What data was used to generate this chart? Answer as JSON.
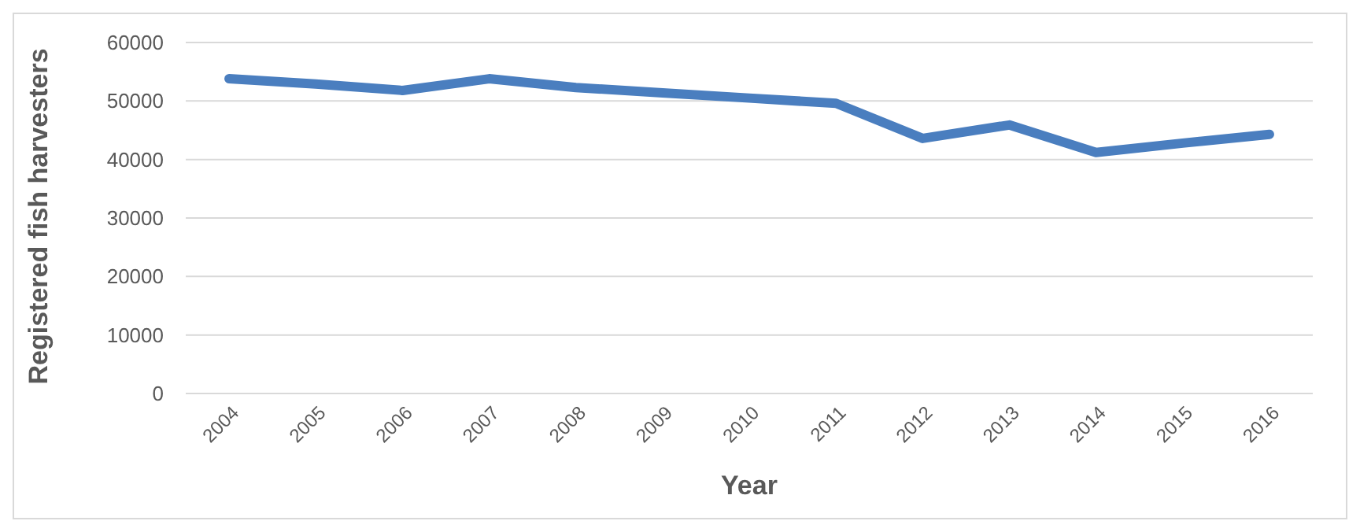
{
  "chart_data": {
    "type": "line",
    "xlabel": "Year",
    "ylabel": "Registered fish harvesters",
    "categories": [
      "2004",
      "2005",
      "2006",
      "2007",
      "2008",
      "2009",
      "2010",
      "2011",
      "2012",
      "2013",
      "2014",
      "2015",
      "2016"
    ],
    "series": [
      {
        "color": "#4a7ebf",
        "values": [
          53800,
          52900,
          51800,
          53800,
          52300,
          51400,
          50500,
          49600,
          43600,
          45900,
          41200,
          42800,
          44300
        ]
      }
    ],
    "ylim": [
      0,
      60000
    ],
    "yticks": [
      0,
      10000,
      20000,
      30000,
      40000,
      50000,
      60000
    ],
    "grid": "y"
  }
}
